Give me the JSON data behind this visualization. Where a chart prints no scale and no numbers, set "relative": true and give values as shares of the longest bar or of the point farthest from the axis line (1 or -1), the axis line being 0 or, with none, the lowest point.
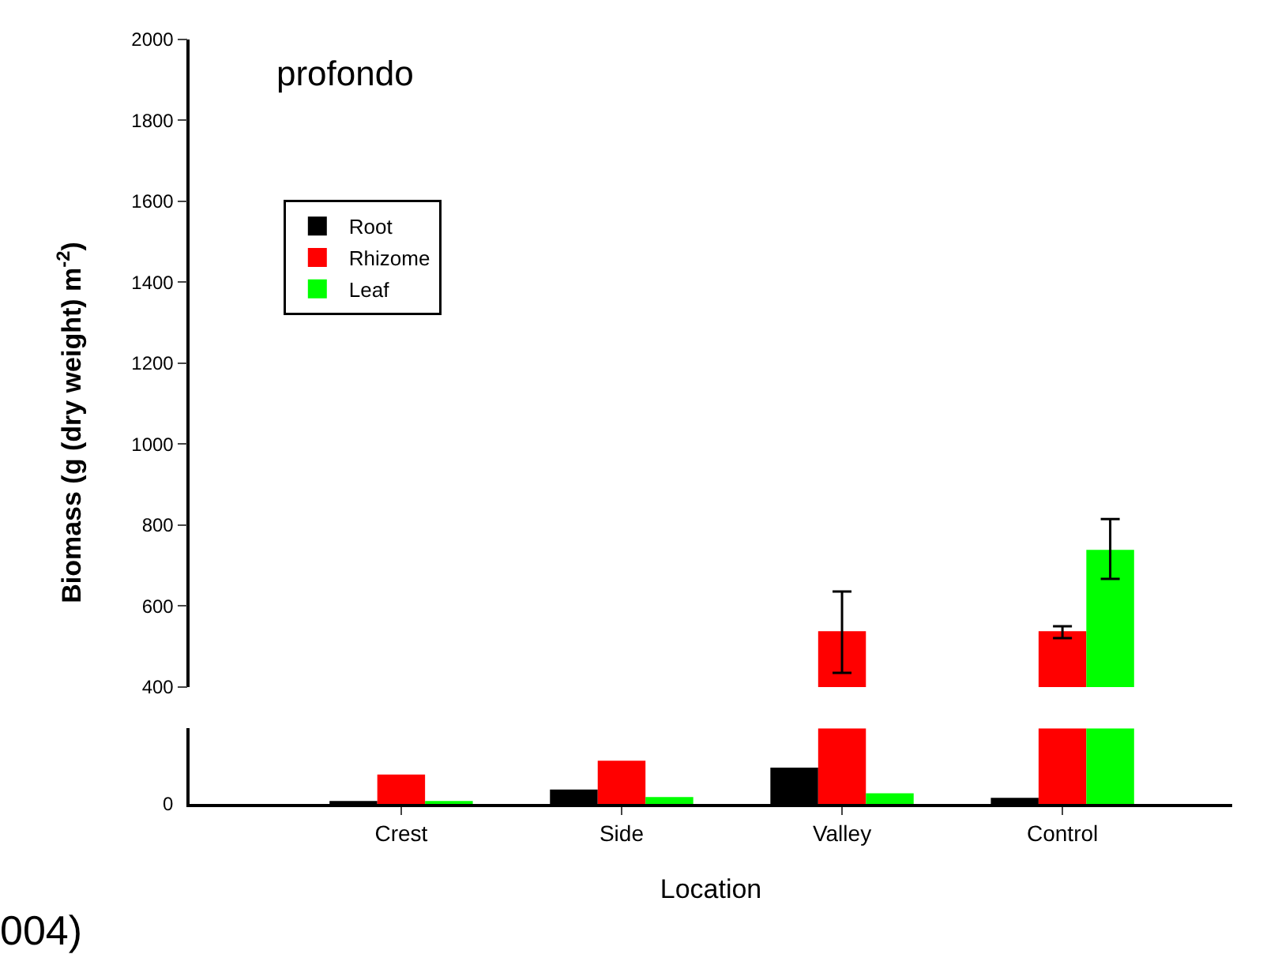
{
  "chart_data": [
    {
      "type": "bar",
      "ylabel": "Biomass (g (dry weight) m$^{-2}$)",
      "annotations": [
        "profondo"
      ],
      "categories": [
        "Crest",
        "Side",
        "Valley",
        "Control"
      ],
      "ylim": [
        400,
        2000
      ],
      "yticks": [
        400,
        600,
        800,
        1000,
        1200,
        1400,
        1600,
        1800,
        2000
      ],
      "tick_labels": "y",
      "legend": "top left",
      "series": [
        {
          "name": "Root",
          "color": "#000000",
          "values": [
            null,
            null,
            null,
            null
          ],
          "errors": [
            null,
            null,
            null,
            null
          ]
        },
        {
          "name": "Rhizome",
          "color": "#ff0000",
          "values": [
            null,
            null,
            538,
            538
          ],
          "errors": [
            null,
            null,
            [
              435,
              636
            ],
            [
              521,
              550
            ]
          ]
        },
        {
          "name": "Leaf",
          "color": "#00ff00",
          "values": [
            null,
            null,
            null,
            739
          ],
          "errors": [
            null,
            null,
            null,
            [
              667,
              815
            ]
          ]
        }
      ]
    },
    {
      "type": "bar",
      "relative": true,
      "xlabel": "Location",
      "annotations": [
        "0",
        "004)"
      ],
      "categories": [
        "Crest",
        "Side",
        "Valley",
        "Control"
      ],
      "series": [
        {
          "color": "#000000",
          "values": [
            0.04,
            0.19,
            0.48,
            0.08
          ]
        },
        {
          "color": "#ff0000",
          "values": [
            0.39,
            0.57,
            1,
            1
          ]
        },
        {
          "color": "#00ff00",
          "values": [
            0.03,
            0.09,
            0.14,
            1
          ]
        }
      ]
    }
  ]
}
